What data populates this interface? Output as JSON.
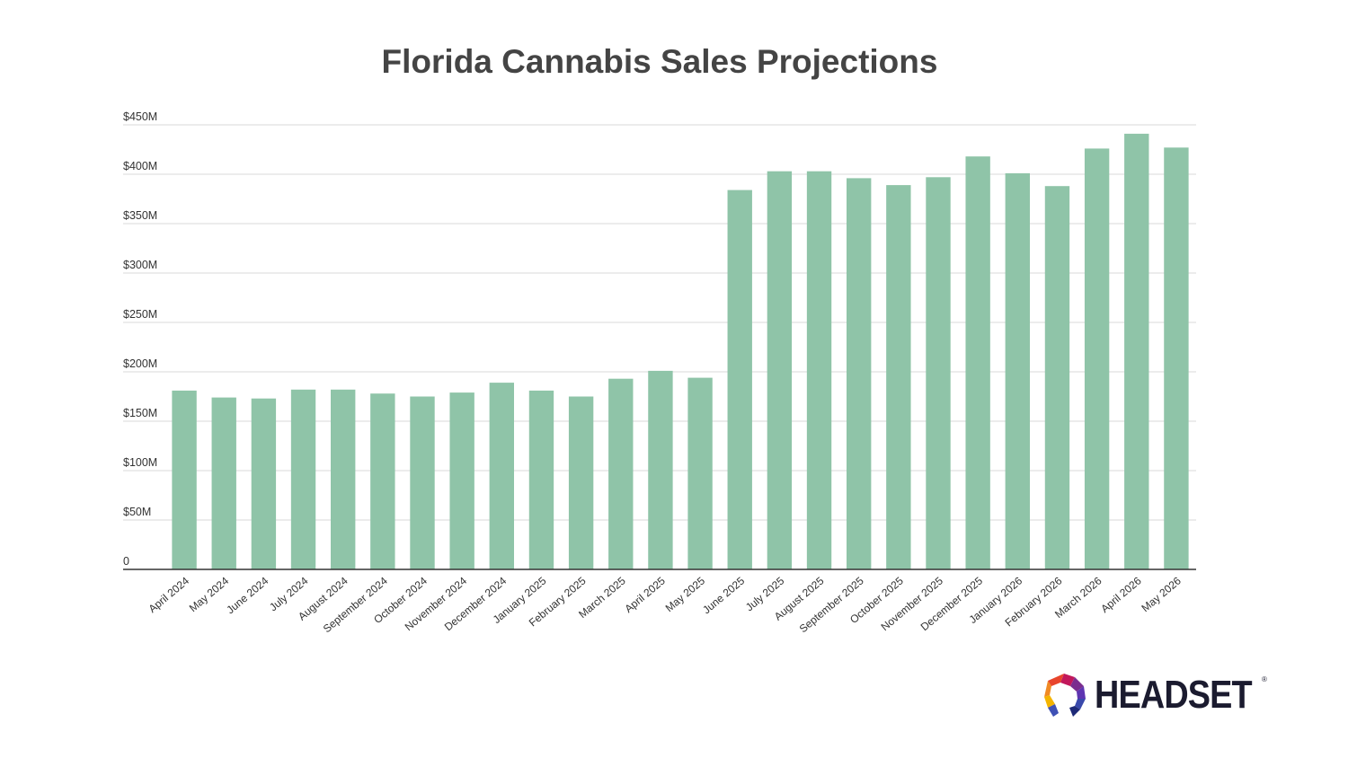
{
  "chart_data": {
    "type": "bar",
    "title": "Florida Cannabis Sales Projections",
    "xlabel": "",
    "ylabel": "",
    "ylim": [
      0,
      450
    ],
    "y_ticks": [
      0,
      50,
      100,
      150,
      200,
      250,
      300,
      350,
      400,
      450
    ],
    "y_tick_labels": [
      "0",
      "$50M",
      "$100M",
      "$150M",
      "$200M",
      "$250M",
      "$300M",
      "$350M",
      "$400M",
      "$450M"
    ],
    "grid": true,
    "legend": "none",
    "bar_color": "#8fc4a8",
    "categories": [
      "April 2024",
      "May 2024",
      "June 2024",
      "July 2024",
      "August 2024",
      "September 2024",
      "October 2024",
      "November 2024",
      "December 2024",
      "January 2025",
      "February 2025",
      "March 2025",
      "April 2025",
      "May 2025",
      "June 2025",
      "July 2025",
      "August 2025",
      "September 2025",
      "October 2025",
      "November 2025",
      "December 2025",
      "January 2026",
      "February 2026",
      "March 2026",
      "April 2026",
      "May 2026"
    ],
    "values": [
      181,
      174,
      173,
      182,
      182,
      178,
      175,
      179,
      189,
      181,
      175,
      193,
      201,
      194,
      384,
      403,
      403,
      396,
      389,
      397,
      418,
      401,
      388,
      426,
      441,
      427
    ]
  },
  "logo": {
    "text": "HEADSET",
    "registered": "®",
    "colors": [
      "#e8452c",
      "#f08a24",
      "#c2185b",
      "#7b2d8e",
      "#3949ab",
      "#1e2a78"
    ]
  }
}
